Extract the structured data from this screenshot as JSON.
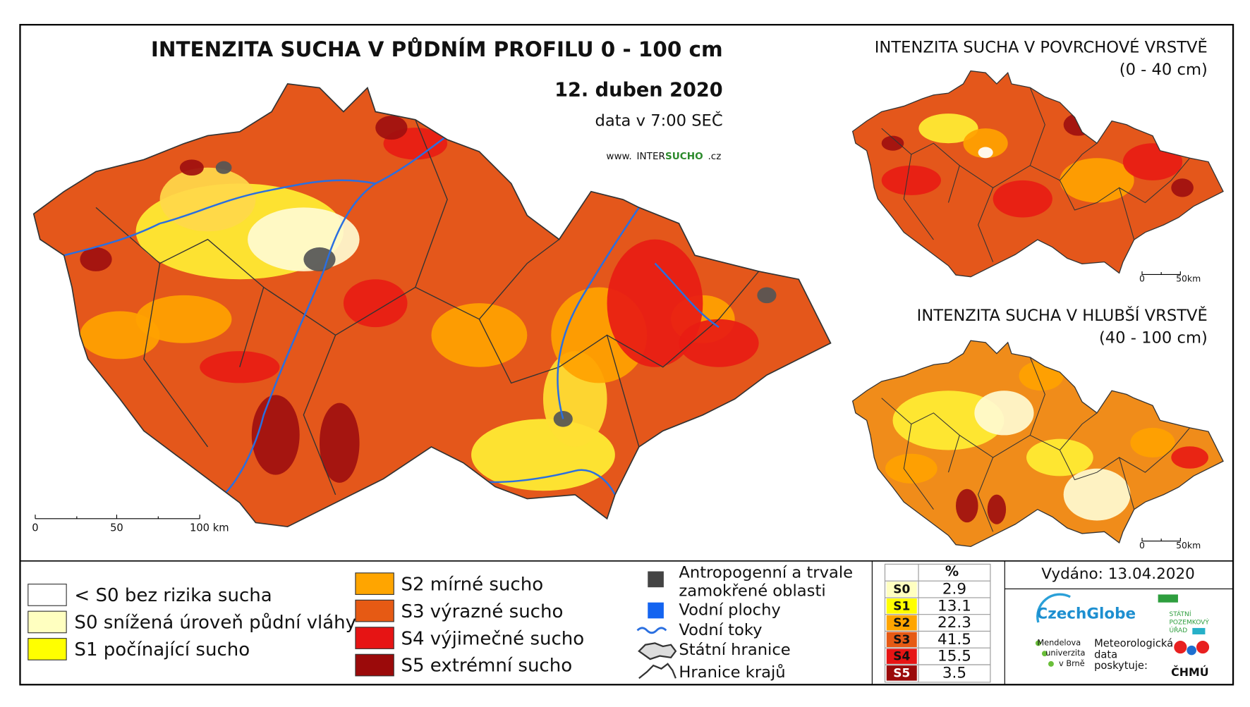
{
  "main": {
    "title": "INTENZITA SUCHA V PŮDNÍM PROFILU 0 - 100 cm",
    "date": "12. duben 2020",
    "time": "data v 7:00 SEČ",
    "website": [
      "www.",
      "INTER",
      "SUCHO",
      ".cz"
    ],
    "scale": [
      "0",
      "50",
      "100 km"
    ]
  },
  "insets": [
    {
      "title": "INTENZITA SUCHA V POVRCHOVÉ VRSTVĚ",
      "subtitle": "(0 - 40 cm)",
      "scale": [
        "0",
        "50km"
      ]
    },
    {
      "title": "INTENZITA SUCHA V HLUBŠÍ VRSTVĚ",
      "subtitle": "(40 - 100 cm)",
      "scale": [
        "0",
        "50km"
      ]
    }
  ],
  "legend": {
    "classes": [
      {
        "label": "< S0 bez rizika sucha",
        "color": "#ffffff"
      },
      {
        "label": "S0 snížená úroveň půdní vláhy",
        "color": "#ffffc0"
      },
      {
        "label": "S1 počínající sucho",
        "color": "#ffff00"
      },
      {
        "label": "S2 mírné sucho",
        "color": "#ffa500"
      },
      {
        "label": "S3 výrazné sucho",
        "color": "#e65a14"
      },
      {
        "label": "S4 výjimečné sucho",
        "color": "#e61414"
      },
      {
        "label": "S5 extrémní sucho",
        "color": "#9b0a0a"
      }
    ],
    "other": [
      [
        "Antropogenní a trvale",
        "zamokřené oblasti"
      ],
      [
        "Vodní plochy"
      ],
      [
        "Vodní toky"
      ],
      [
        "Státní hranice"
      ],
      [
        "Hranice krajů"
      ]
    ]
  },
  "table": {
    "header": "%",
    "rows": [
      {
        "class": "S0",
        "percent": 2.9,
        "color": "#ffffc0"
      },
      {
        "class": "S1",
        "percent": 13.1,
        "color": "#ffff00"
      },
      {
        "class": "S2",
        "percent": 22.3,
        "color": "#ffa500"
      },
      {
        "class": "S3",
        "percent": 41.5,
        "color": "#e65a14"
      },
      {
        "class": "S4",
        "percent": 15.5,
        "color": "#e61414"
      },
      {
        "class": "S5",
        "percent": 3.5,
        "color": "#9b0a0a"
      }
    ]
  },
  "issued": "Vydáno: 13.04.2020",
  "logos": {
    "czechglobe": "CzechGlobe",
    "spu": [
      "STÁTNÍ",
      "POZEMKOVÝ",
      "ÚŘAD"
    ],
    "mendelu": [
      "Mendelova",
      "univerzita",
      "v Brně"
    ],
    "provider": [
      "Meteorologická",
      "data",
      "poskytuje:"
    ],
    "chmu": "ČHMÚ"
  }
}
